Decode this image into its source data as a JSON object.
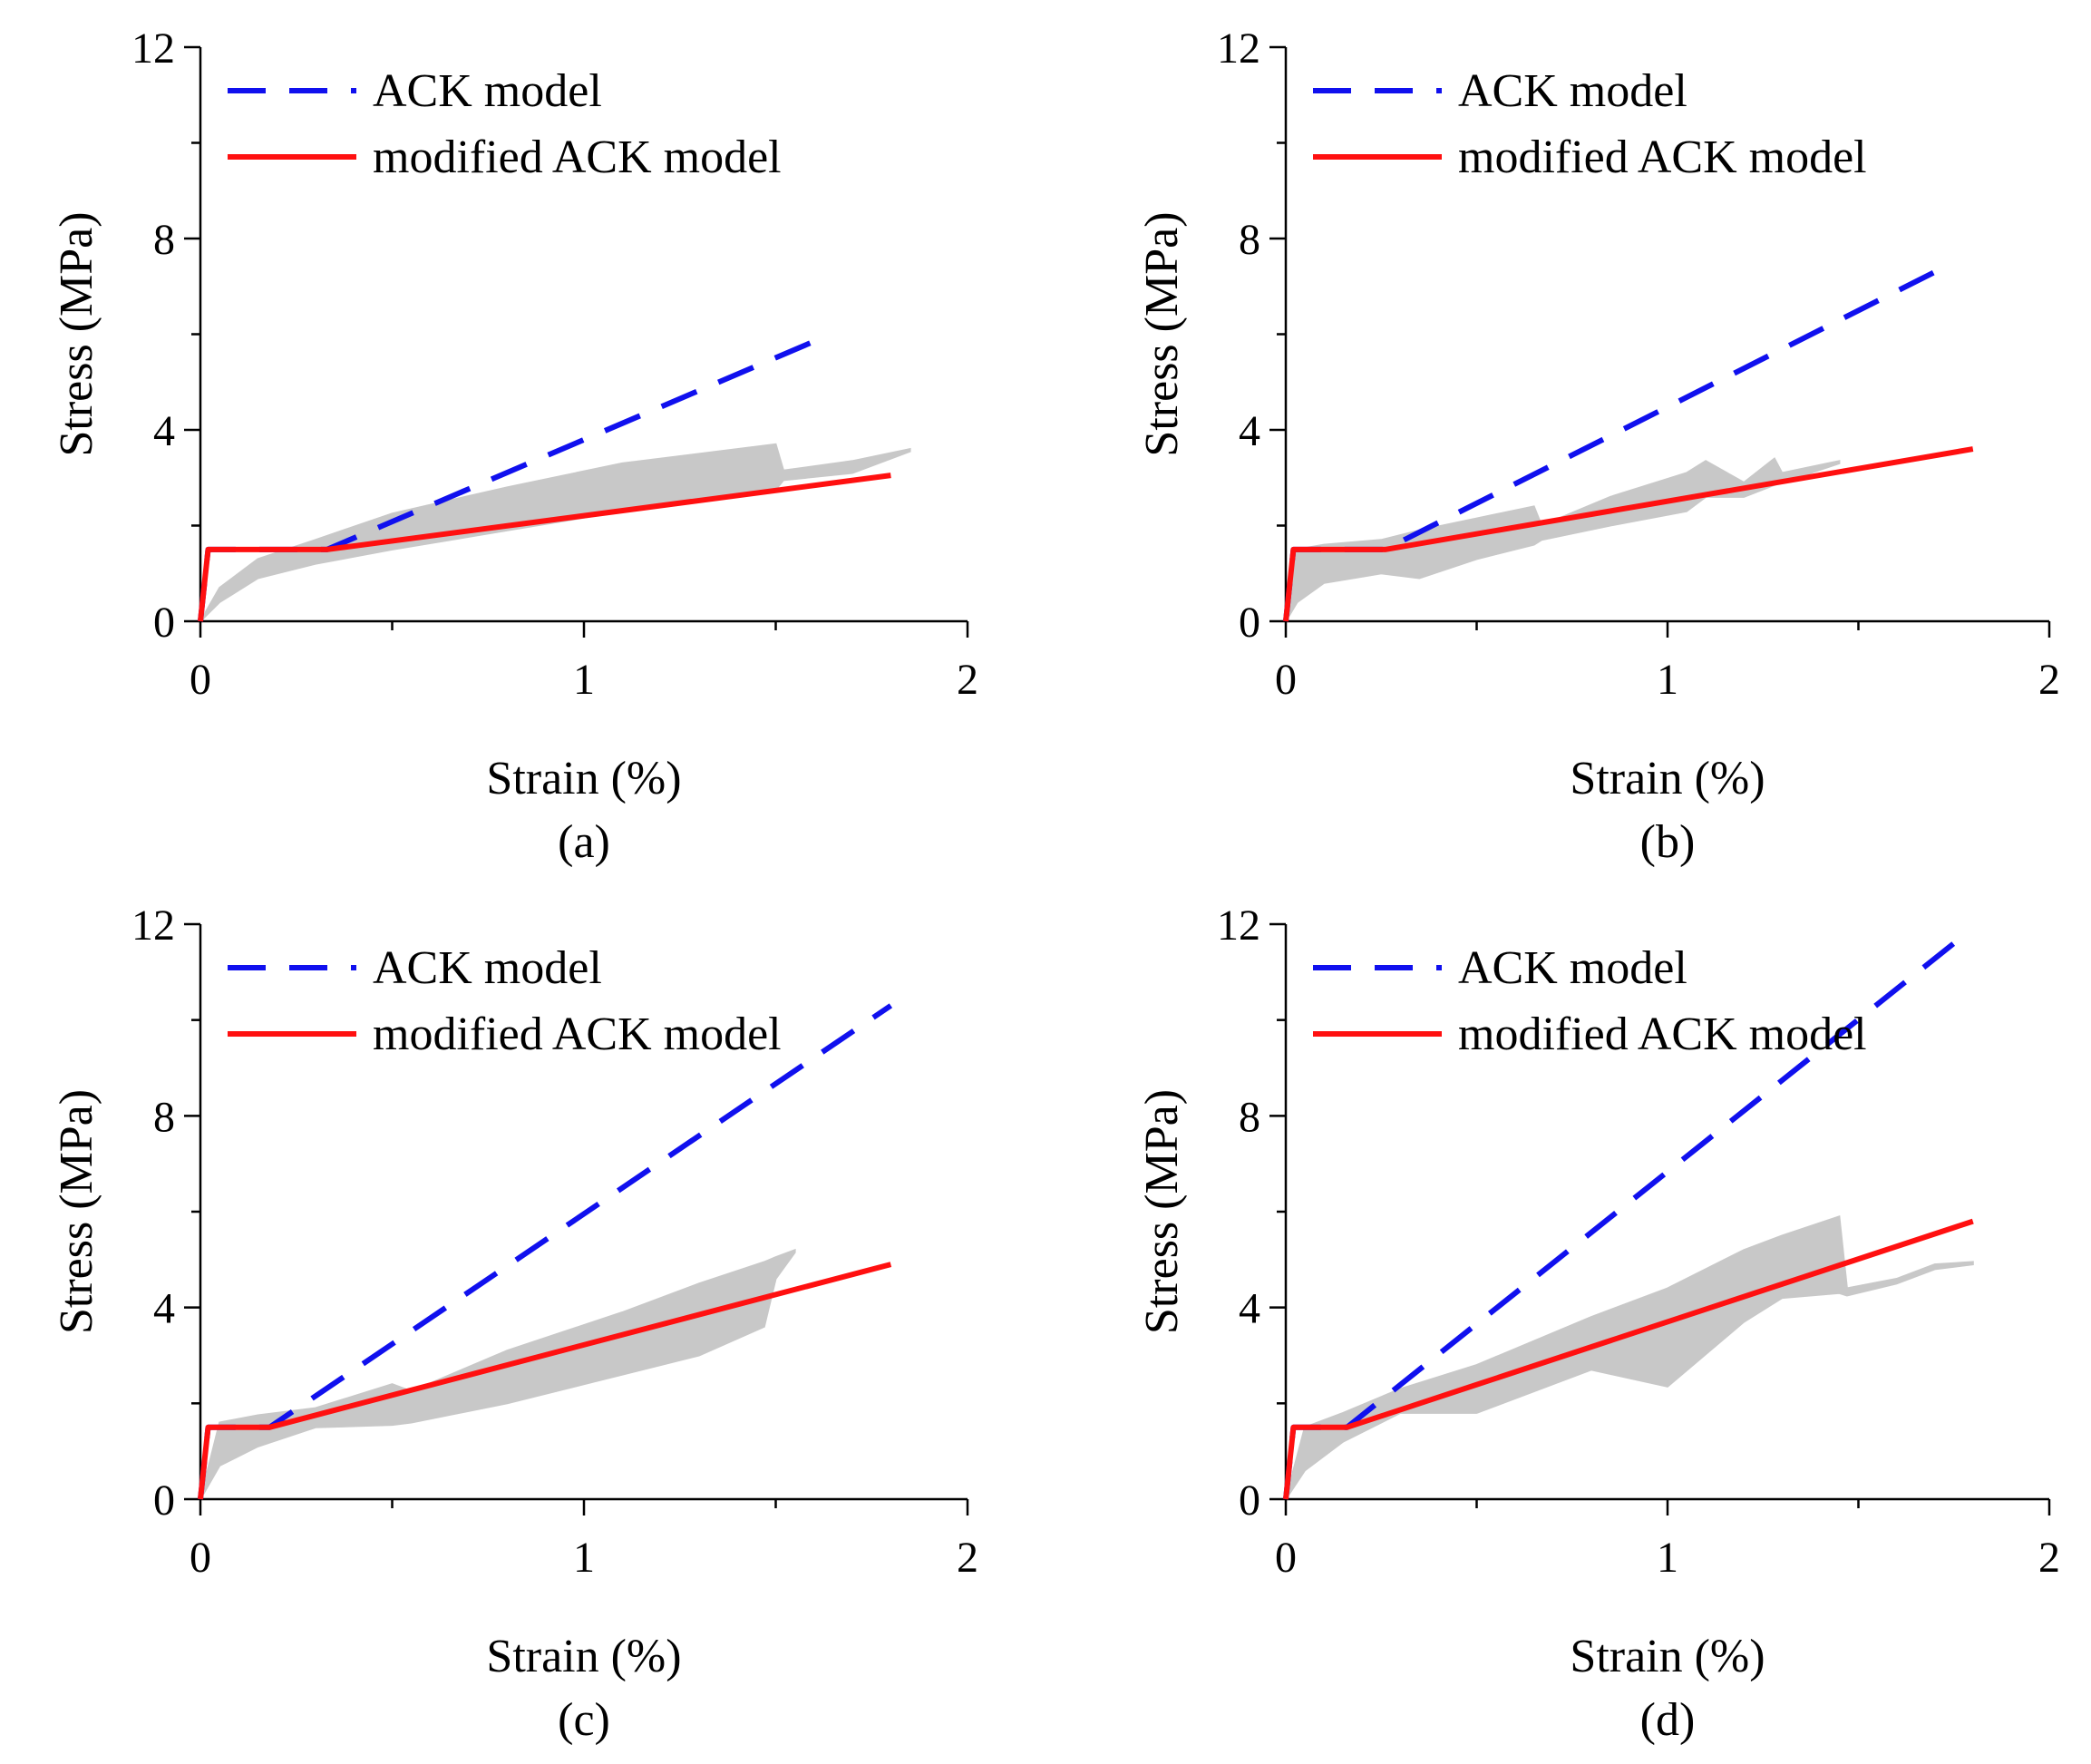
{
  "colors": {
    "ack": "#1010ee",
    "modified": "#ff1010",
    "experiment": "#c8c8c8",
    "axis": "#000000"
  },
  "chart_data": [
    {
      "type": "line",
      "panel_label": "(a)",
      "xlabel": "Strain (%)",
      "ylabel": "Stress (MPa)",
      "xlim": [
        0,
        2
      ],
      "ylim": [
        0,
        12
      ],
      "xticks": [
        "0",
        "1",
        "2"
      ],
      "yticks": [
        "0",
        "4",
        "8",
        "12"
      ],
      "legend": {
        "position": "top-left",
        "entries": [
          "ACK model",
          "modified ACK model"
        ]
      },
      "series": [
        {
          "name": "ACK model",
          "style": "dashed",
          "x": [
            0,
            0.02,
            0.33,
            1.6
          ],
          "y": [
            0,
            1.5,
            1.5,
            5.85
          ]
        },
        {
          "name": "modified ACK model",
          "style": "solid",
          "x": [
            0,
            0.02,
            0.33,
            1.8
          ],
          "y": [
            0,
            1.5,
            1.5,
            3.05
          ]
        }
      ],
      "experimental_band": {
        "upper": {
          "x": [
            0,
            0.05,
            0.15,
            0.3,
            0.5,
            0.8,
            1.1,
            1.35,
            1.5,
            1.52,
            1.7,
            1.85
          ],
          "y": [
            0,
            0.7,
            1.3,
            1.7,
            2.25,
            2.8,
            3.3,
            3.55,
            3.7,
            3.15,
            3.35,
            3.6
          ]
        },
        "lower": {
          "x": [
            0,
            0.05,
            0.15,
            0.3,
            0.5,
            0.8,
            1.1,
            1.35,
            1.5,
            1.52,
            1.7,
            1.85
          ],
          "y": [
            0,
            0.4,
            0.9,
            1.2,
            1.5,
            1.9,
            2.3,
            2.6,
            2.75,
            2.95,
            3.1,
            3.55
          ]
        }
      }
    },
    {
      "type": "line",
      "panel_label": "(b)",
      "xlabel": "Strain (%)",
      "ylabel": "Stress (MPa)",
      "xlim": [
        0,
        2
      ],
      "ylim": [
        0,
        12
      ],
      "xticks": [
        "0",
        "1",
        "2"
      ],
      "yticks": [
        "0",
        "4",
        "8",
        "12"
      ],
      "legend": {
        "position": "top-left",
        "entries": [
          "ACK model",
          "modified ACK model"
        ]
      },
      "series": [
        {
          "name": "ACK model",
          "style": "dashed",
          "x": [
            0,
            0.02,
            0.26,
            1.7
          ],
          "y": [
            0,
            1.5,
            1.5,
            7.3
          ]
        },
        {
          "name": "modified ACK model",
          "style": "solid",
          "x": [
            0,
            0.02,
            0.26,
            1.8
          ],
          "y": [
            0,
            1.5,
            1.5,
            3.6
          ]
        }
      ],
      "experimental_band": {
        "upper": {
          "x": [
            0,
            0.03,
            0.1,
            0.25,
            0.35,
            0.5,
            0.65,
            0.67,
            0.85,
            1.05,
            1.1,
            1.2,
            1.28,
            1.3,
            1.45
          ],
          "y": [
            0,
            1.5,
            1.6,
            1.7,
            1.9,
            2.15,
            2.4,
            2.0,
            2.6,
            3.1,
            3.35,
            2.9,
            3.4,
            3.1,
            3.35
          ]
        },
        "lower": {
          "x": [
            0,
            0.03,
            0.1,
            0.25,
            0.35,
            0.5,
            0.65,
            0.67,
            0.85,
            1.05,
            1.1,
            1.2,
            1.28,
            1.3,
            1.45
          ],
          "y": [
            0,
            0.4,
            0.8,
            1.0,
            0.9,
            1.3,
            1.6,
            1.7,
            2.0,
            2.3,
            2.6,
            2.6,
            2.85,
            2.9,
            3.3
          ]
        }
      }
    },
    {
      "type": "line",
      "panel_label": "(c)",
      "xlabel": "Strain (%)",
      "ylabel": "Stress (MPa)",
      "xlim": [
        0,
        2
      ],
      "ylim": [
        0,
        12
      ],
      "xticks": [
        "0",
        "1",
        "2"
      ],
      "yticks": [
        "0",
        "4",
        "8",
        "12"
      ],
      "legend": {
        "position": "top-left",
        "entries": [
          "ACK model",
          "modified ACK model"
        ]
      },
      "series": [
        {
          "name": "ACK model",
          "style": "dashed",
          "x": [
            0,
            0.02,
            0.18,
            1.8
          ],
          "y": [
            0,
            1.5,
            1.5,
            10.3
          ]
        },
        {
          "name": "modified ACK model",
          "style": "solid",
          "x": [
            0,
            0.02,
            0.18,
            1.8
          ],
          "y": [
            0,
            1.5,
            1.5,
            4.9
          ]
        }
      ],
      "experimental_band": {
        "upper": {
          "x": [
            0,
            0.05,
            0.15,
            0.3,
            0.5,
            0.55,
            0.8,
            1.1,
            1.3,
            1.47,
            1.5,
            1.55
          ],
          "y": [
            0,
            1.6,
            1.75,
            1.9,
            2.4,
            2.25,
            3.1,
            3.9,
            4.5,
            4.95,
            5.05,
            5.2
          ]
        },
        "lower": {
          "x": [
            0,
            0.05,
            0.15,
            0.3,
            0.5,
            0.55,
            0.8,
            1.1,
            1.3,
            1.47,
            1.5,
            1.55
          ],
          "y": [
            0,
            0.7,
            1.1,
            1.5,
            1.55,
            1.6,
            2.0,
            2.6,
            3.0,
            3.6,
            4.6,
            5.15
          ]
        }
      }
    },
    {
      "type": "line",
      "panel_label": "(d)",
      "xlabel": "Strain (%)",
      "ylabel": "Stress (MPa)",
      "xlim": [
        0,
        2
      ],
      "ylim": [
        0,
        12
      ],
      "xticks": [
        "0",
        "1",
        "2"
      ],
      "yticks": [
        "0",
        "4",
        "8",
        "12"
      ],
      "legend": {
        "position": "top-left",
        "entries": [
          "ACK model",
          "modified ACK model"
        ]
      },
      "series": [
        {
          "name": "ACK model",
          "style": "dashed",
          "x": [
            0,
            0.02,
            0.16,
            1.75
          ],
          "y": [
            0,
            1.5,
            1.5,
            11.6
          ]
        },
        {
          "name": "modified ACK model",
          "style": "solid",
          "x": [
            0,
            0.02,
            0.16,
            1.8
          ],
          "y": [
            0,
            1.5,
            1.5,
            5.8
          ]
        }
      ],
      "experimental_band": {
        "upper": {
          "x": [
            0,
            0.05,
            0.15,
            0.3,
            0.5,
            0.8,
            1.0,
            1.2,
            1.3,
            1.45,
            1.47,
            1.6,
            1.7,
            1.8
          ],
          "y": [
            0,
            1.5,
            1.8,
            2.3,
            2.8,
            3.8,
            4.4,
            5.2,
            5.5,
            5.9,
            4.4,
            4.6,
            4.9,
            4.95
          ]
        },
        "lower": {
          "x": [
            0,
            0.05,
            0.15,
            0.3,
            0.5,
            0.8,
            1.0,
            1.2,
            1.3,
            1.45,
            1.47,
            1.6,
            1.7,
            1.8
          ],
          "y": [
            0,
            0.6,
            1.2,
            1.8,
            1.8,
            2.7,
            2.35,
            3.7,
            4.2,
            4.3,
            4.25,
            4.5,
            4.8,
            4.9
          ]
        }
      }
    }
  ]
}
